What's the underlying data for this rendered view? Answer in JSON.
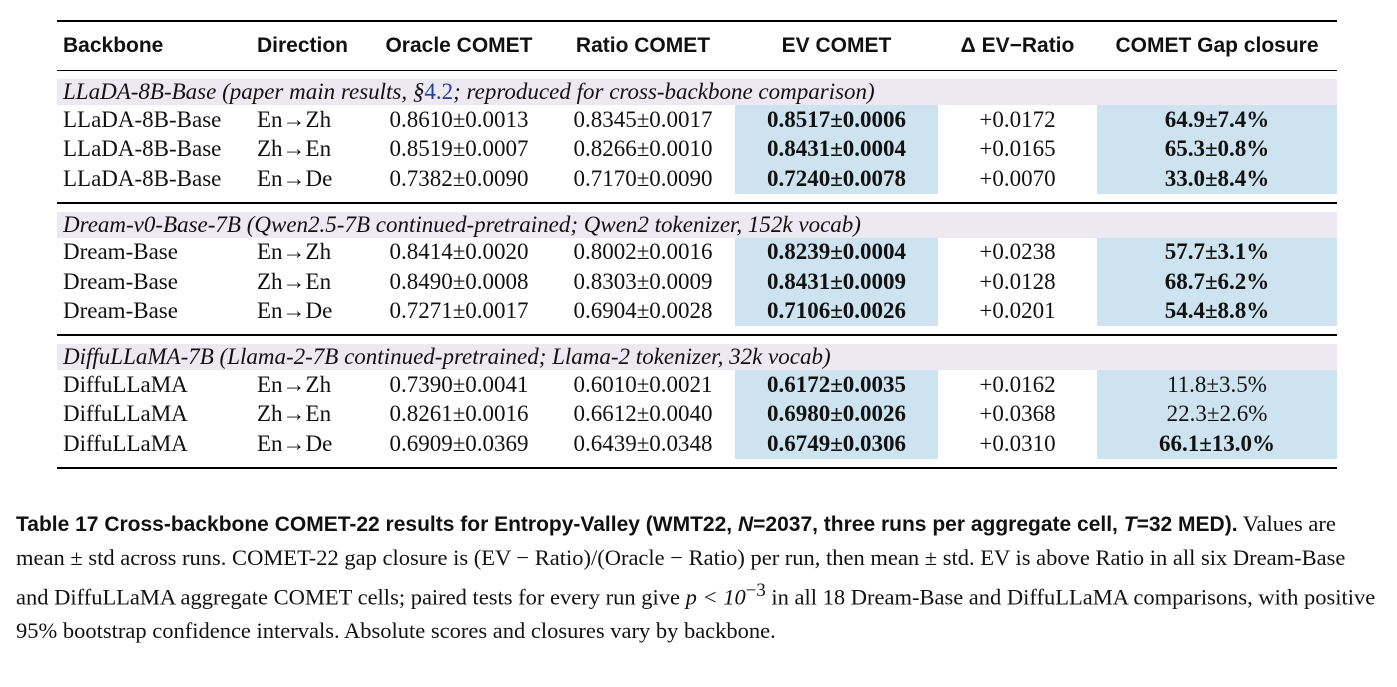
{
  "table": {
    "headers": [
      "Backbone",
      "Direction",
      "Oracle COMET",
      "Ratio COMET",
      "EV COMET",
      "Δ EV−Ratio",
      "COMET Gap closure"
    ],
    "sections": [
      {
        "title_pre": "LLaDA-8B-Base (paper main results, §",
        "title_link": "4.2",
        "title_post": "; reproduced for cross-backbone comparison)",
        "rows": [
          {
            "backbone": "LLaDA-8B-Base",
            "direction": "En→Zh",
            "oracle": "0.8610±0.0013",
            "ratio": "0.8345±0.0017",
            "ev": "0.8517±0.0006",
            "delta": "+0.0172",
            "closure": "64.9±7.4%"
          },
          {
            "backbone": "LLaDA-8B-Base",
            "direction": "Zh→En",
            "oracle": "0.8519±0.0007",
            "ratio": "0.8266±0.0010",
            "ev": "0.8431±0.0004",
            "delta": "+0.0165",
            "closure": "65.3±0.8%"
          },
          {
            "backbone": "LLaDA-8B-Base",
            "direction": "En→De",
            "oracle": "0.7382±0.0090",
            "ratio": "0.7170±0.0090",
            "ev": "0.7240±0.0078",
            "delta": "+0.0070",
            "closure": "33.0±8.4%"
          }
        ]
      },
      {
        "title_pre": "Dream-v0-Base-7B (Qwen2.5-7B continued-pretrained; Qwen2 tokenizer, 152k vocab)",
        "title_link": "",
        "title_post": "",
        "rows": [
          {
            "backbone": "Dream-Base",
            "direction": "En→Zh",
            "oracle": "0.8414±0.0020",
            "ratio": "0.8002±0.0016",
            "ev": "0.8239±0.0004",
            "delta": "+0.0238",
            "closure": "57.7±3.1%"
          },
          {
            "backbone": "Dream-Base",
            "direction": "Zh→En",
            "oracle": "0.8490±0.0008",
            "ratio": "0.8303±0.0009",
            "ev": "0.8431±0.0009",
            "delta": "+0.0128",
            "closure": "68.7±6.2%"
          },
          {
            "backbone": "Dream-Base",
            "direction": "En→De",
            "oracle": "0.7271±0.0017",
            "ratio": "0.6904±0.0028",
            "ev": "0.7106±0.0026",
            "delta": "+0.0201",
            "closure": "54.4±8.8%"
          }
        ]
      },
      {
        "title_pre": "DiffuLLaMA-7B (Llama-2-7B continued-pretrained; Llama-2 tokenizer, 32k vocab)",
        "title_link": "",
        "title_post": "",
        "rows": [
          {
            "backbone": "DiffuLLaMA",
            "direction": "En→Zh",
            "oracle": "0.7390±0.0041",
            "ratio": "0.6010±0.0021",
            "ev": "0.6172±0.0035",
            "delta": "+0.0162",
            "closure": "11.8±3.5%"
          },
          {
            "backbone": "DiffuLLaMA",
            "direction": "Zh→En",
            "oracle": "0.8261±0.0016",
            "ratio": "0.6612±0.0040",
            "ev": "0.6980±0.0026",
            "delta": "+0.0368",
            "closure": "22.3±2.6%"
          },
          {
            "backbone": "DiffuLLaMA",
            "direction": "En→De",
            "oracle": "0.6909±0.0369",
            "ratio": "0.6439±0.0348",
            "ev": "0.6749±0.0306",
            "delta": "+0.0310",
            "closure": "66.1±13.0%"
          }
        ]
      }
    ]
  },
  "caption": {
    "lead_pre": "Table 17  Cross-backbone COMET-22 results for Entropy-Valley (WMT22, ",
    "n_var": "N",
    "n_val": "=2037",
    "lead_mid": ", three runs per aggregate cell, ",
    "t_var": "T",
    "t_val": "=32",
    "lead_end": "MED).",
    "body1": " Values are mean ± std across runs. COMET-22 gap closure is (EV − Ratio)/(Oracle − Ratio) per run, then mean ± std. EV is above Ratio in all six Dream-Base and DiffuLLaMA aggregate COMET cells; paired tests for every run give ",
    "p_text": "p < 10",
    "p_exp": "−3",
    "body2": " in all 18 Dream-Base and DiffuLLaMA comparisons, with positive 95% bootstrap confidence intervals. Absolute scores and closures vary by backbone."
  }
}
